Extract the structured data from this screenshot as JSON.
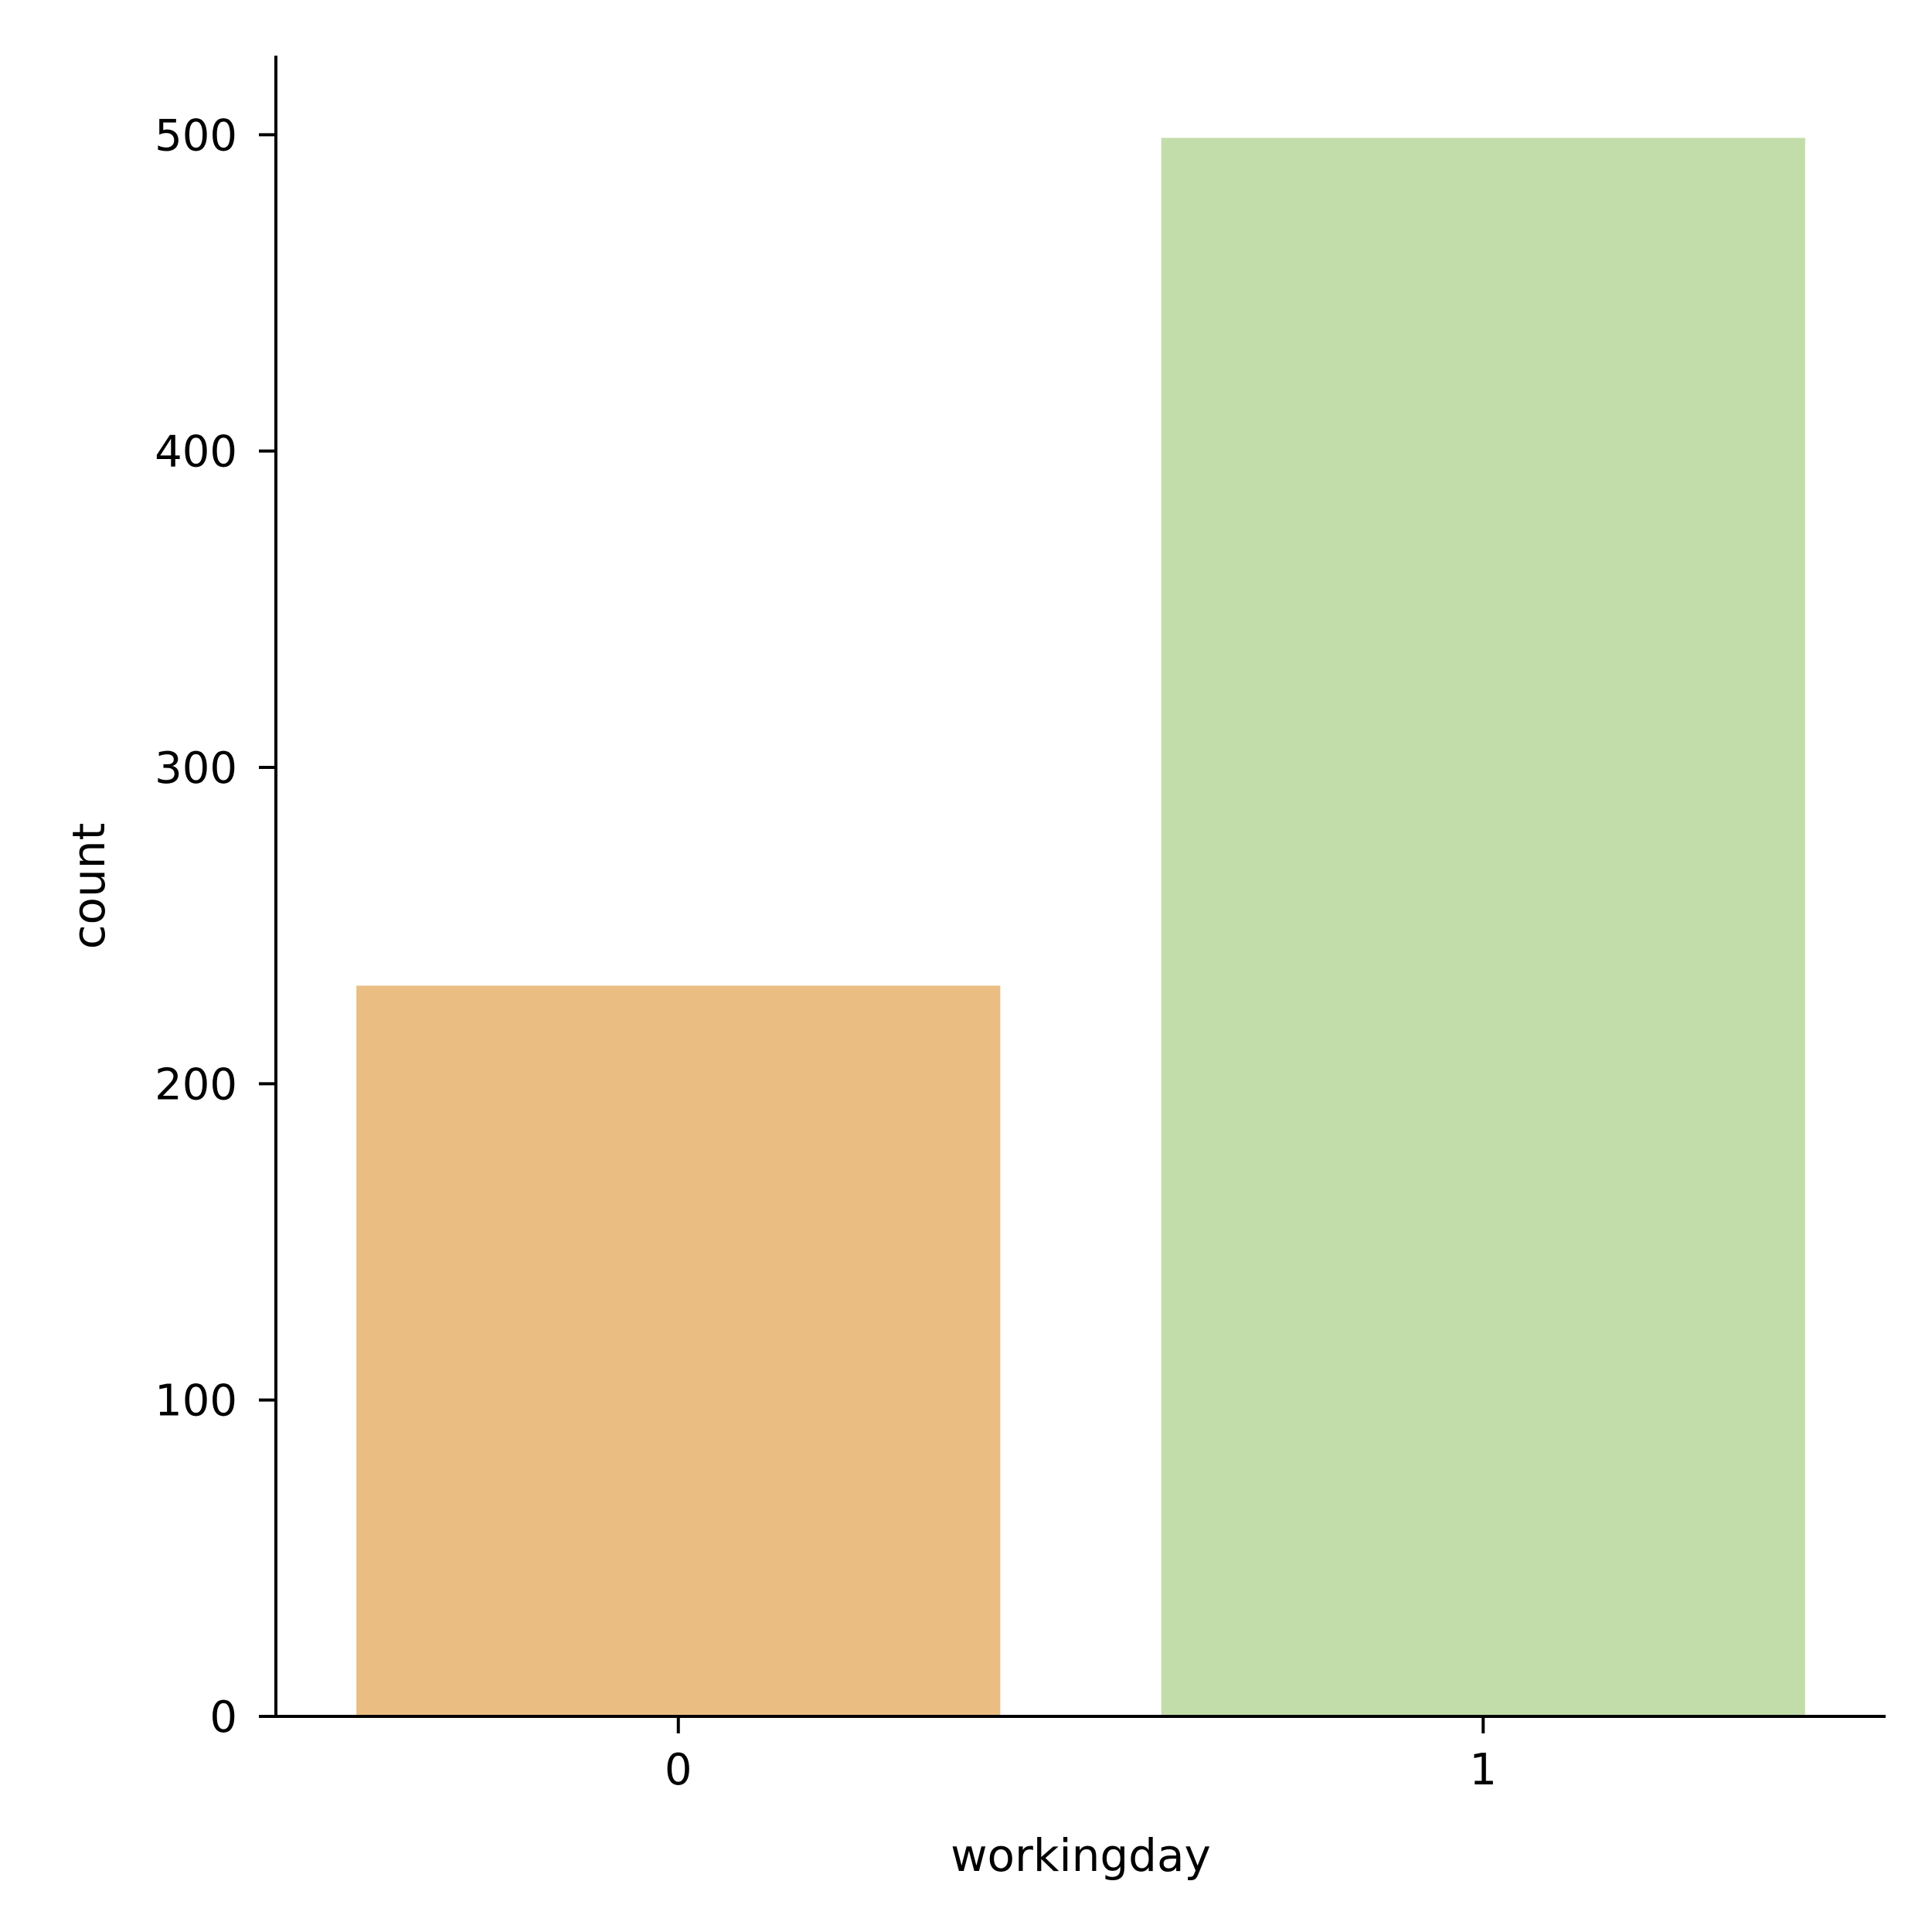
{
  "chart_data": {
    "type": "bar",
    "categories": [
      "0",
      "1"
    ],
    "values": [
      231,
      499
    ],
    "colors": [
      "#EABD83",
      "#C2DDAA"
    ],
    "xlabel": "workingday",
    "ylabel": "count",
    "ylim": [
      0,
      525
    ],
    "yticks": [
      0,
      100,
      200,
      300,
      400,
      500
    ],
    "grid": false
  }
}
